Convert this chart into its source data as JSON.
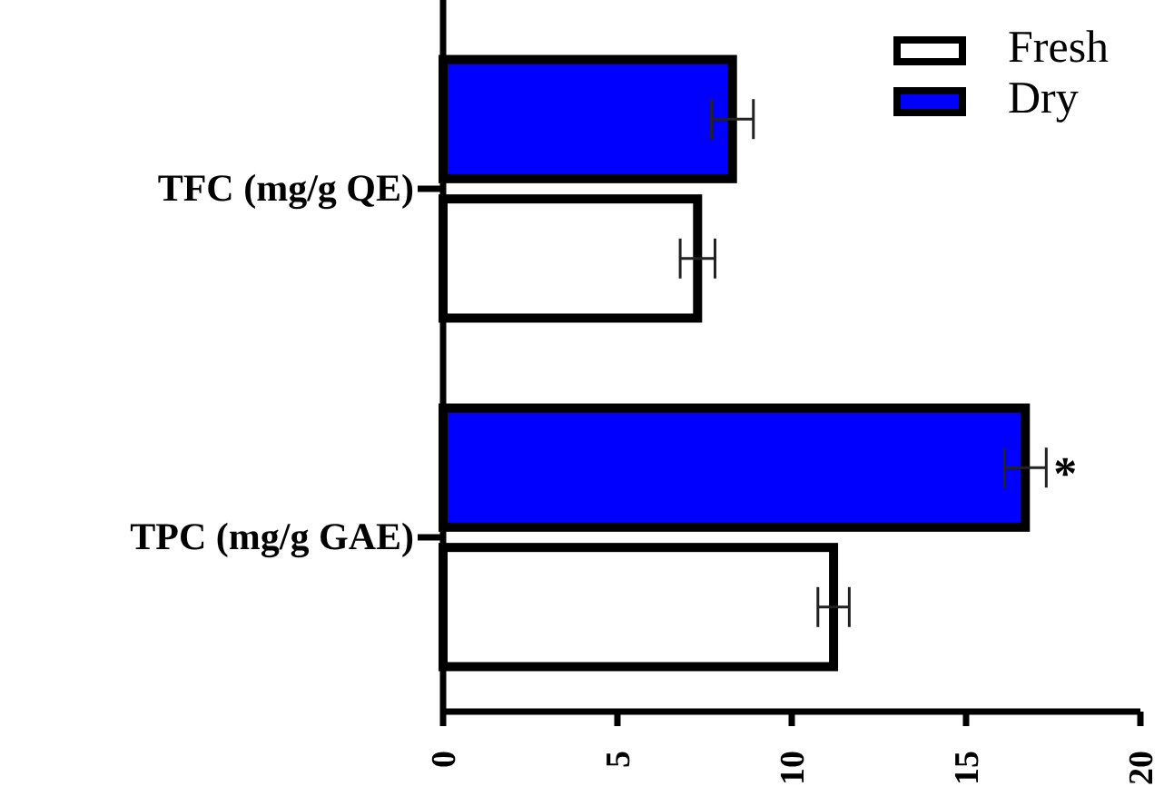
{
  "chart_data": {
    "type": "bar",
    "orientation": "horizontal",
    "categories": [
      "TFC (mg/g QE)",
      "TPC (mg/g GAE)"
    ],
    "series": [
      {
        "name": "Fresh",
        "color": "#ffffff",
        "values": [
          7.3,
          11.2
        ],
        "errors": [
          0.5,
          0.45
        ]
      },
      {
        "name": "Dry",
        "color": "#0000ff",
        "values": [
          8.3,
          16.7
        ],
        "errors": [
          0.6,
          0.6
        ]
      }
    ],
    "xlim": [
      0,
      20
    ],
    "xticks": [
      0,
      5,
      10,
      15,
      20
    ],
    "legend": "top right",
    "grid": false,
    "annotations": [
      "*"
    ]
  }
}
